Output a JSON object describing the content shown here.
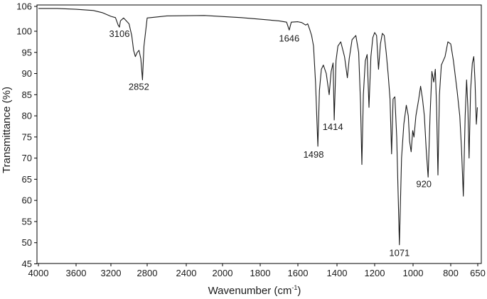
{
  "chart_data": {
    "type": "line",
    "title": "",
    "xlabel": "Wavenumber (cm",
    "xlabel_sup": "-1",
    "xlabel_end": ")",
    "ylabel": "Transmittance (%)",
    "xlim": [
      4000,
      625
    ],
    "ylim": [
      45,
      106
    ],
    "x_reversed": true,
    "grid": false,
    "x_ticks": [
      4000,
      3600,
      3200,
      2800,
      2400,
      2000,
      1800,
      1600,
      1400,
      1200,
      1000,
      800,
      650
    ],
    "y_ticks": [
      45,
      50,
      55,
      60,
      65,
      70,
      75,
      80,
      85,
      90,
      95,
      100,
      106
    ],
    "series": [
      {
        "points": [
          [
            4000,
            105.5
          ],
          [
            3800,
            105.5
          ],
          [
            3600,
            105.3
          ],
          [
            3400,
            105.0
          ],
          [
            3300,
            104.5
          ],
          [
            3200,
            103.6
          ],
          [
            3150,
            103.3
          ],
          [
            3120,
            101.5
          ],
          [
            3106,
            101.0
          ],
          [
            3095,
            102.5
          ],
          [
            3060,
            103.2
          ],
          [
            3000,
            101.8
          ],
          [
            2970,
            99.0
          ],
          [
            2950,
            95.5
          ],
          [
            2930,
            94.0
          ],
          [
            2910,
            95.0
          ],
          [
            2890,
            95.5
          ],
          [
            2870,
            93.5
          ],
          [
            2852,
            88.5
          ],
          [
            2835,
            96.5
          ],
          [
            2800,
            103.2
          ],
          [
            2600,
            103.7
          ],
          [
            2200,
            103.8
          ],
          [
            1900,
            103.3
          ],
          [
            1700,
            102.5
          ],
          [
            1660,
            102.2
          ],
          [
            1646,
            100.3
          ],
          [
            1635,
            102.2
          ],
          [
            1600,
            102.3
          ],
          [
            1580,
            102.1
          ],
          [
            1560,
            101.5
          ],
          [
            1550,
            101.8
          ],
          [
            1540,
            100.5
          ],
          [
            1530,
            99.0
          ],
          [
            1520,
            96.5
          ],
          [
            1510,
            88.0
          ],
          [
            1498,
            72.8
          ],
          [
            1490,
            86.0
          ],
          [
            1480,
            91.0
          ],
          [
            1470,
            92.0
          ],
          [
            1455,
            90.0
          ],
          [
            1440,
            85.0
          ],
          [
            1430,
            90.5
          ],
          [
            1420,
            92.5
          ],
          [
            1414,
            79.0
          ],
          [
            1405,
            93.0
          ],
          [
            1395,
            96.5
          ],
          [
            1380,
            97.5
          ],
          [
            1360,
            94.0
          ],
          [
            1345,
            89.0
          ],
          [
            1335,
            93.5
          ],
          [
            1320,
            98.0
          ],
          [
            1300,
            99.0
          ],
          [
            1285,
            95.0
          ],
          [
            1275,
            83.0
          ],
          [
            1268,
            68.5
          ],
          [
            1260,
            85.0
          ],
          [
            1250,
            93.0
          ],
          [
            1240,
            94.5
          ],
          [
            1230,
            82.0
          ],
          [
            1220,
            94.0
          ],
          [
            1210,
            98.5
          ],
          [
            1200,
            99.7
          ],
          [
            1190,
            99.0
          ],
          [
            1180,
            91.0
          ],
          [
            1170,
            97.0
          ],
          [
            1160,
            99.5
          ],
          [
            1150,
            99.0
          ],
          [
            1140,
            95.0
          ],
          [
            1130,
            90.0
          ],
          [
            1120,
            84.0
          ],
          [
            1112,
            71.0
          ],
          [
            1104,
            84.0
          ],
          [
            1095,
            84.5
          ],
          [
            1085,
            75.0
          ],
          [
            1071,
            49.5
          ],
          [
            1060,
            70.0
          ],
          [
            1048,
            78.0
          ],
          [
            1035,
            82.5
          ],
          [
            1025,
            80.0
          ],
          [
            1018,
            74.0
          ],
          [
            1010,
            71.5
          ],
          [
            1002,
            76.5
          ],
          [
            995,
            75.0
          ],
          [
            985,
            80.0
          ],
          [
            970,
            84.0
          ],
          [
            960,
            87.0
          ],
          [
            950,
            84.0
          ],
          [
            940,
            80.0
          ],
          [
            930,
            72.0
          ],
          [
            920,
            65.5
          ],
          [
            910,
            80.0
          ],
          [
            900,
            90.5
          ],
          [
            890,
            88.0
          ],
          [
            882,
            91.0
          ],
          [
            875,
            82.0
          ],
          [
            868,
            66.0
          ],
          [
            860,
            85.0
          ],
          [
            850,
            92.0
          ],
          [
            830,
            94.0
          ],
          [
            815,
            97.5
          ],
          [
            800,
            97.0
          ],
          [
            785,
            93.0
          ],
          [
            765,
            86.0
          ],
          [
            750,
            80.0
          ],
          [
            740,
            72.0
          ],
          [
            730,
            61.0
          ],
          [
            720,
            80.0
          ],
          [
            712,
            88.5
          ],
          [
            705,
            82.0
          ],
          [
            698,
            70.0
          ],
          [
            690,
            86.0
          ],
          [
            680,
            92.5
          ],
          [
            672,
            94.0
          ],
          [
            665,
            88.0
          ],
          [
            658,
            78.0
          ],
          [
            652,
            82.0
          ]
        ]
      }
    ],
    "annotations": [
      {
        "text": "3106",
        "x": 3106,
        "y": 101.0,
        "anchor": "below"
      },
      {
        "text": "2852",
        "x": 2852,
        "y": 88.5,
        "anchor": "below"
      },
      {
        "text": "1646",
        "x": 1646,
        "y": 100.3,
        "anchor": "below"
      },
      {
        "text": "1498",
        "x": 1498,
        "y": 72.8,
        "anchor": "below"
      },
      {
        "text": "1414",
        "x": 1414,
        "y": 79.0,
        "anchor": "below"
      },
      {
        "text": "1071",
        "x": 1071,
        "y": 49.5,
        "anchor": "below"
      },
      {
        "text": "920",
        "x": 920,
        "y": 65.5,
        "anchor": "below"
      }
    ]
  }
}
